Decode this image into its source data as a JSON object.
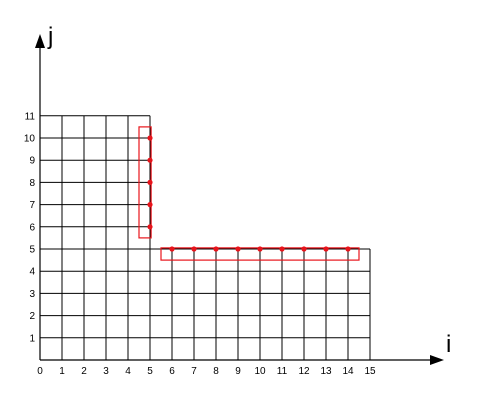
{
  "axes": {
    "x_title": "i",
    "y_title": "j",
    "x_ticks": [
      "0",
      "1",
      "2",
      "3",
      "4",
      "5",
      "6",
      "7",
      "8",
      "9",
      "10",
      "11",
      "12",
      "13",
      "14",
      "15"
    ],
    "y_ticks": [
      "1",
      "2",
      "3",
      "4",
      "5",
      "6",
      "7",
      "8",
      "9",
      "10",
      "11"
    ]
  },
  "grid": {
    "lower_block": {
      "i_range": [
        0,
        15
      ],
      "j_range": [
        0,
        5
      ]
    },
    "upper_block": {
      "i_range": [
        0,
        5
      ],
      "j_range": [
        5,
        11
      ]
    }
  },
  "highlights": {
    "color": "#e8141b",
    "vertical_points": [
      [
        5,
        6
      ],
      [
        5,
        7
      ],
      [
        5,
        8
      ],
      [
        5,
        9
      ],
      [
        5,
        10
      ]
    ],
    "vertical_bracket": {
      "i_range": [
        4.5,
        5.05
      ],
      "j_range": [
        5.5,
        10.5
      ]
    },
    "horizontal_points": [
      [
        6,
        5
      ],
      [
        7,
        5
      ],
      [
        8,
        5
      ],
      [
        9,
        5
      ],
      [
        10,
        5
      ],
      [
        11,
        5
      ],
      [
        12,
        5
      ],
      [
        13,
        5
      ],
      [
        14,
        5
      ]
    ],
    "horizontal_bracket": {
      "i_range": [
        5.5,
        14.5
      ],
      "j_range": [
        4.5,
        5.05
      ]
    }
  }
}
